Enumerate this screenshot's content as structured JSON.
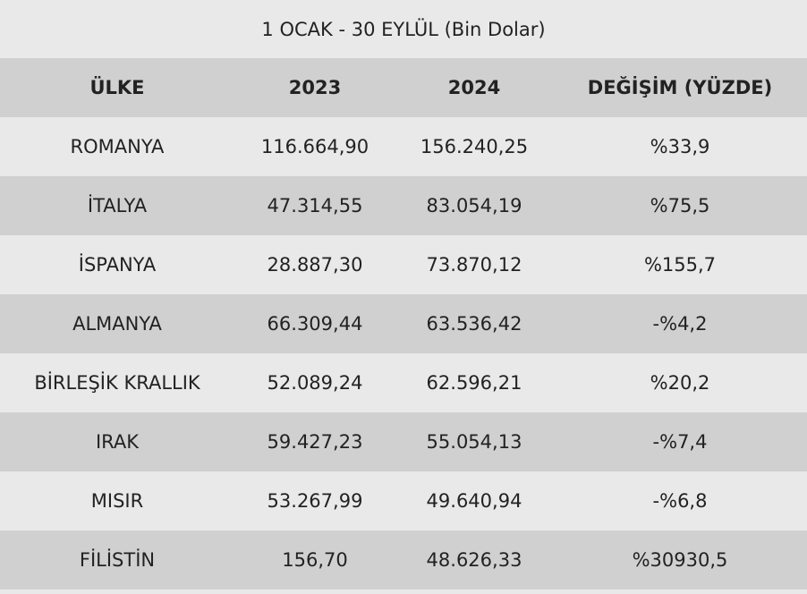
{
  "title": "1 OCAK - 30 EYLÜL (Bin Dolar)",
  "headers": [
    "ÜLKE",
    "2023",
    "2024",
    "DEĞİŞİM (YÜZDE)"
  ],
  "rows": [
    [
      "ROMANYA",
      "116.664,90",
      "156.240,25",
      "%33,9"
    ],
    [
      "İTALYA",
      "47.314,55",
      "83.054,19",
      "%75,5"
    ],
    [
      "İSPANYA",
      "28.887,30",
      "73.870,12",
      "%155,7"
    ],
    [
      "ALMANYA",
      "66.309,44",
      "63.536,42",
      "-%4,2"
    ],
    [
      "BİRLEŞİK KRALLIK",
      "52.089,24",
      "62.596,21",
      "%20,2"
    ],
    [
      "IRAK",
      "59.427,23",
      "55.054,13",
      "-%7,4"
    ],
    [
      "MISIR",
      "53.267,99",
      "49.640,94",
      "-%6,8"
    ],
    [
      "FİLİSTİN",
      "156,70",
      "48.626,33",
      "%30930,5"
    ]
  ]
}
